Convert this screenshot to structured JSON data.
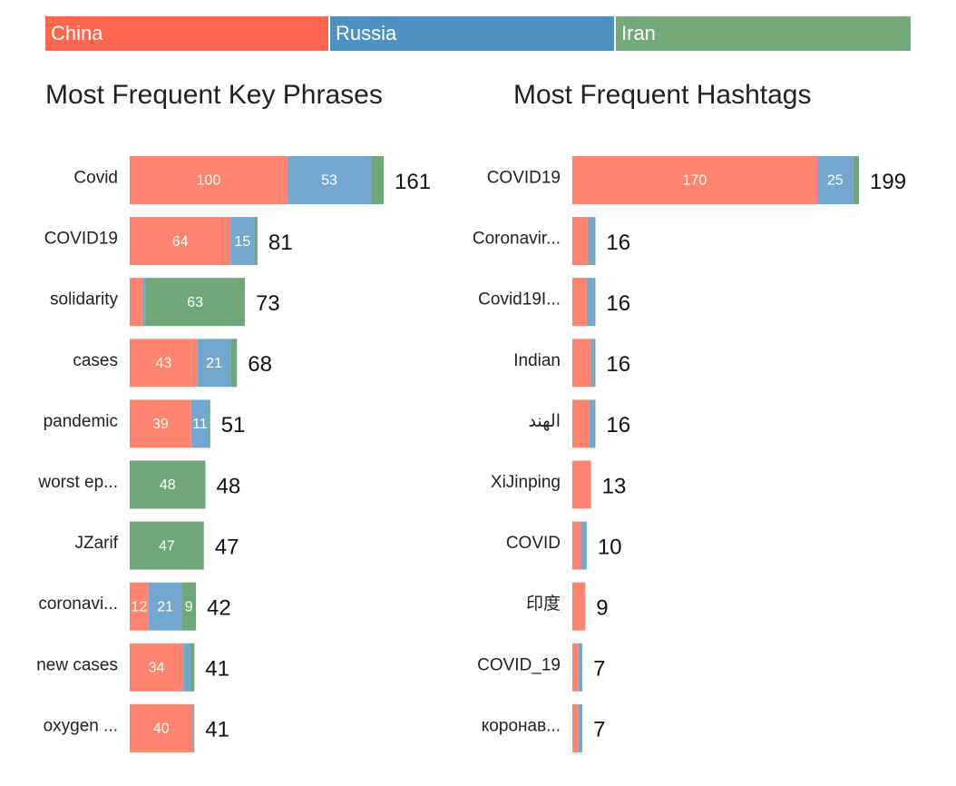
{
  "legend": [
    {
      "name": "China",
      "color": "#ff6650"
    },
    {
      "name": "Russia",
      "color": "#4d92c2"
    },
    {
      "name": "Iran",
      "color": "#73a97b"
    }
  ],
  "colors": {
    "China": "#fe8470",
    "Russia": "#72a7d0",
    "Iran": "#6fa77a"
  },
  "chart_data": [
    {
      "type": "bar",
      "orientation": "horizontal",
      "stacked": true,
      "title": "Most Frequent Key Phrases",
      "categories": [
        "Covid",
        "COVID19",
        "solidarity",
        "cases",
        "pandemic",
        "worst ep...",
        "JZarif",
        "coronavi...",
        "new cases",
        "oxygen ..."
      ],
      "series": [
        {
          "name": "China",
          "values": [
            100,
            64,
            8,
            43,
            39,
            0,
            0,
            12,
            34,
            40
          ]
        },
        {
          "name": "Russia",
          "values": [
            53,
            15,
            2,
            21,
            11,
            0,
            0,
            21,
            4,
            1
          ]
        },
        {
          "name": "Iran",
          "values": [
            8,
            2,
            63,
            4,
            1,
            48,
            47,
            9,
            3,
            0
          ]
        }
      ],
      "totals": [
        161,
        81,
        73,
        68,
        51,
        48,
        47,
        42,
        41,
        41
      ],
      "label_threshold": 9,
      "xlim": [
        0,
        161
      ]
    },
    {
      "type": "bar",
      "orientation": "horizontal",
      "stacked": true,
      "title": "Most Frequent Hashtags",
      "categories": [
        "COVID19",
        "Coronavir...",
        "Covid19I...",
        "Indian",
        "الهند",
        "XiJinping",
        "COVID",
        "印度",
        "COVID_19",
        "коронав..."
      ],
      "series": [
        {
          "name": "China",
          "values": [
            170,
            11,
            10,
            13,
            12,
            13,
            6,
            9,
            4,
            4
          ]
        },
        {
          "name": "Russia",
          "values": [
            25,
            4,
            5,
            2,
            3,
            0,
            4,
            0,
            3,
            3
          ]
        },
        {
          "name": "Iran",
          "values": [
            4,
            1,
            1,
            1,
            1,
            0,
            0,
            0,
            0,
            0
          ]
        }
      ],
      "totals": [
        199,
        16,
        16,
        16,
        16,
        13,
        10,
        9,
        7,
        7
      ],
      "label_threshold": 15,
      "xlim": [
        0,
        199
      ]
    }
  ]
}
